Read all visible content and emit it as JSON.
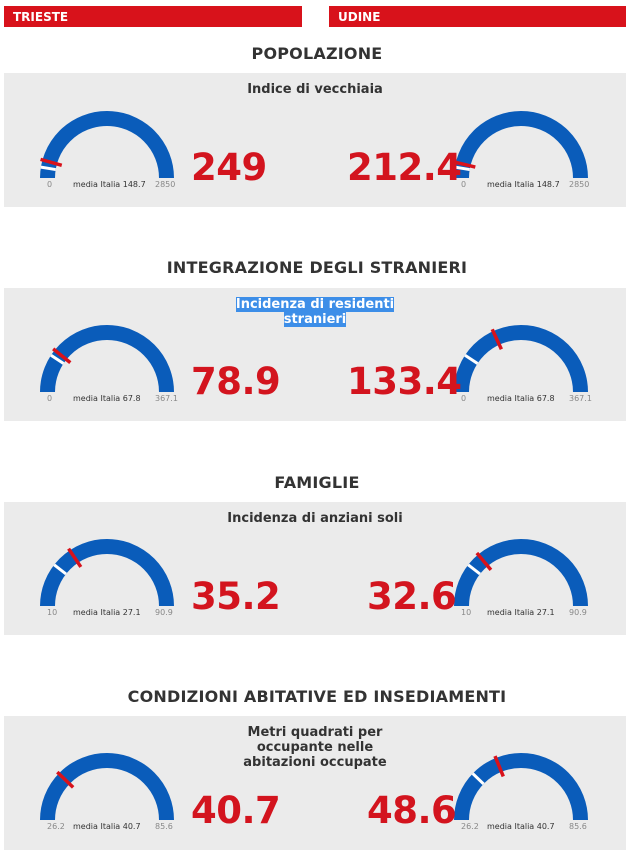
{
  "tabs": {
    "left": "TRIESTE",
    "right": "UDINE"
  },
  "colors": {
    "accent_red": "#d8121b",
    "gauge_blue": "#0a5cba",
    "panel_bg": "#ebebeb"
  },
  "sections": [
    {
      "title": "POPOLAZIONE",
      "indicator": "Indice di vecchiaia",
      "min_label": "0",
      "avg_label": "media Italia 148.7",
      "max_label": "2850",
      "left": {
        "value": "249",
        "needle_fraction": 0.087,
        "avg_fraction": 0.052
      },
      "right": {
        "value": "212.4",
        "needle_fraction": 0.075,
        "avg_fraction": 0.052
      }
    },
    {
      "title": "INTEGRAZIONE DEGLI STRANIERI",
      "indicator_lines": [
        "Incidenza di residenti",
        "stranieri"
      ],
      "min_label": "0",
      "avg_label": "media Italia 67.8",
      "max_label": "367.1",
      "left": {
        "value": "78.9",
        "needle_fraction": 0.215,
        "avg_fraction": 0.185
      },
      "right": {
        "value": "133.4",
        "needle_fraction": 0.363,
        "avg_fraction": 0.185
      }
    },
    {
      "title": "FAMIGLIE",
      "indicator": "Incidenza di anziani soli",
      "min_label": "10",
      "avg_label": "media Italia 27.1",
      "max_label": "90.9",
      "left": {
        "value": "35.2",
        "needle_fraction": 0.312,
        "avg_fraction": 0.211
      },
      "right": {
        "value": "32.6",
        "needle_fraction": 0.279,
        "avg_fraction": 0.211
      }
    },
    {
      "title": "CONDIZIONI ABITATIVE ED INSEDIAMENTI",
      "indicator_lines": [
        "Metri quadrati per",
        "occupante nelle",
        "abitazioni occupate"
      ],
      "min_label": "26.2",
      "avg_label": "media Italia 40.7",
      "max_label": "85.6",
      "left": {
        "value": "40.7",
        "needle_fraction": 0.244,
        "avg_fraction": 0.244
      },
      "right": {
        "value": "48.6",
        "needle_fraction": 0.377,
        "avg_fraction": 0.244
      }
    }
  ]
}
